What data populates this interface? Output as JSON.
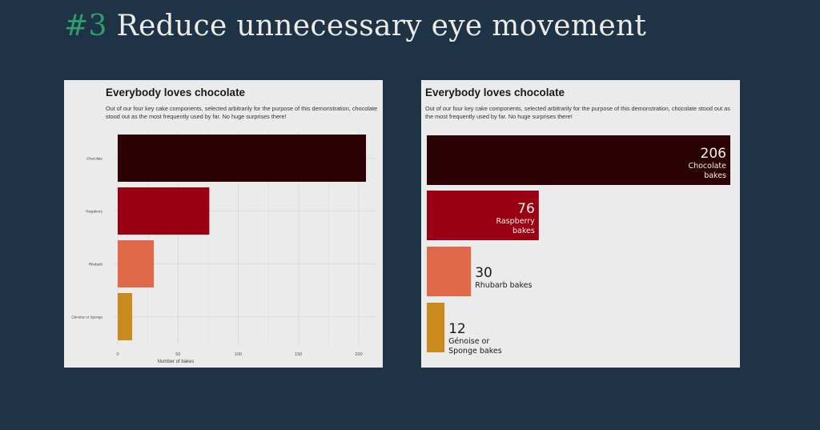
{
  "slide": {
    "number": "#3",
    "title": "Reduce unnecessary eye movement"
  },
  "colors": {
    "background": "#1f3347",
    "accent": "#2f9e6b",
    "panel": "#ebebeb"
  },
  "chart_data": [
    {
      "type": "bar",
      "orientation": "horizontal",
      "title": "Everybody loves chocolate",
      "subtitle": "Out of our four key cake components, selected arbitrarily for the purpose of this demonstration, chocolate stood out as the most frequently used by far. No huge surprises there!",
      "categories": [
        "Chocolate",
        "Raspberry",
        "Rhubarb",
        "Génoise or Sponge"
      ],
      "values": [
        206,
        76,
        30,
        12
      ],
      "colors": [
        "#2a0204",
        "#990013",
        "#e0694a",
        "#c98a1e"
      ],
      "xlabel": "Number of bakes",
      "ylabel": "",
      "xlim": [
        0,
        210
      ],
      "xticks": [
        "0",
        "50",
        "100",
        "150",
        "200"
      ],
      "grid": true
    },
    {
      "type": "bar",
      "orientation": "horizontal",
      "title": "Everybody loves chocolate",
      "subtitle": "Out of our four key cake components, selected arbitrarily for the purpose of this demonstration, chocolate stood out as the most frequently used by far. No huge surprises there!",
      "categories": [
        "Chocolate",
        "Raspberry",
        "Rhubarb",
        "Génoise or Sponge"
      ],
      "values": [
        206,
        76,
        30,
        12
      ],
      "data_labels": [
        {
          "value": "206",
          "text": [
            "Chocolate",
            "bakes"
          ]
        },
        {
          "value": "76",
          "text": [
            "Raspberry",
            "bakes"
          ]
        },
        {
          "value": "30",
          "text": [
            "Rhubarb bakes"
          ]
        },
        {
          "value": "12",
          "text": [
            "Génoise or",
            "Sponge bakes"
          ]
        }
      ],
      "colors": [
        "#2a0204",
        "#990013",
        "#e0694a",
        "#c98a1e"
      ],
      "grid": false
    }
  ]
}
